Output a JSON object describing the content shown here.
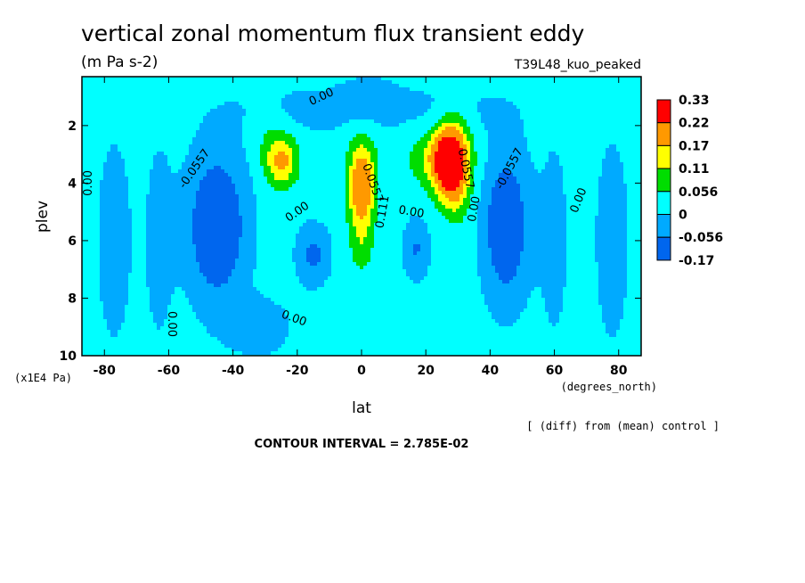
{
  "chart_data": {
    "type": "heatmap",
    "title": "vertical zonal momentum flux transient eddy",
    "units": "(m Pa s-2)",
    "run_label": "T39L48_kuo_peaked",
    "xlabel": "lat",
    "x_units": "(degrees_north)",
    "ylabel": "plev",
    "y_units": "(x1E4 Pa)",
    "xlim": [
      -87,
      87
    ],
    "ylim": [
      10,
      0.3
    ],
    "x_ticks": [
      -80,
      -60,
      -40,
      -20,
      0,
      20,
      40,
      60,
      80
    ],
    "y_ticks": [
      2,
      4,
      6,
      8,
      10
    ],
    "contour_interval_label": "CONTOUR INTERVAL = 2.785E-02",
    "diff_note": "[ (diff) from (mean) control ]",
    "background_level": 0.02,
    "legend": {
      "position": "right",
      "levels": [
        "0.33",
        "0.22",
        "0.17",
        "0.11",
        "0.056",
        "0",
        "-0.056",
        "-0.17"
      ],
      "colors": [
        "#ff0000",
        "#ff9900",
        "#ffff00",
        "#00dd00",
        "#00ffff",
        "#00aaff",
        "#0066ee",
        "#ff0000"
      ]
    },
    "fill_colors": [
      "#0066ee",
      "#00aaff",
      "#00ffff",
      "#00dd00",
      "#ffff00",
      "#ff9900",
      "#ff0000"
    ],
    "features": [
      {
        "lat": 27.5,
        "plev": 3.3,
        "peak": 0.33,
        "wlat": 5.0,
        "wplev": 1.2
      },
      {
        "lat": 24.0,
        "plev": 3.1,
        "peak": 0.1,
        "wlat": 9.0,
        "wplev": 1.0
      },
      {
        "lat": 30.0,
        "plev": 4.5,
        "peak": 0.06,
        "wlat": 4.0,
        "wplev": 1.0
      },
      {
        "lat": 0.0,
        "plev": 4.3,
        "peak": 0.21,
        "wlat": 4.0,
        "wplev": 1.3
      },
      {
        "lat": 0.0,
        "plev": 3.0,
        "peak": 0.06,
        "wlat": 4.5,
        "wplev": 1.0
      },
      {
        "lat": 0.0,
        "plev": 6.2,
        "peak": 0.06,
        "wlat": 3.5,
        "wplev": 1.0
      },
      {
        "lat": -25.0,
        "plev": 3.2,
        "peak": 0.17,
        "wlat": 5.0,
        "wplev": 0.9
      },
      {
        "lat": -45.0,
        "plev": 5.5,
        "peak": -0.15,
        "wlat": 9.0,
        "wplev": 2.5
      },
      {
        "lat": 45.0,
        "plev": 5.5,
        "peak": -0.14,
        "wlat": 7.0,
        "wplev": 2.5
      },
      {
        "lat": -15.0,
        "plev": 6.5,
        "peak": -0.09,
        "wlat": 5.0,
        "wplev": 1.0
      },
      {
        "lat": 17.0,
        "plev": 6.3,
        "peak": -0.08,
        "wlat": 4.0,
        "wplev": 1.0
      },
      {
        "lat": -32.0,
        "plev": 9.0,
        "peak": -0.05,
        "wlat": 10.0,
        "wplev": 1.0
      },
      {
        "lat": 2.0,
        "plev": 1.0,
        "peak": -0.05,
        "wlat": 8.0,
        "wplev": 0.6
      },
      {
        "lat": -77.0,
        "plev": 6.0,
        "peak": -0.04,
        "wlat": 6.0,
        "wplev": 4.0
      },
      {
        "lat": 78.0,
        "plev": 6.0,
        "peak": -0.04,
        "wlat": 6.0,
        "wplev": 4.0
      },
      {
        "lat": -63.0,
        "plev": 6.0,
        "peak": -0.035,
        "wlat": 5.0,
        "wplev": 4.0
      },
      {
        "lat": 60.0,
        "plev": 6.0,
        "peak": -0.035,
        "wlat": 5.0,
        "wplev": 4.0
      },
      {
        "lat": -20.0,
        "plev": 1.5,
        "peak": -0.03,
        "wlat": 25.0,
        "wplev": 1.0
      },
      {
        "lat": 25.0,
        "plev": 1.5,
        "peak": -0.03,
        "wlat": 25.0,
        "wplev": 1.0
      },
      {
        "lat": 0.0,
        "plev": 9.0,
        "peak": 0.03,
        "wlat": 10.0,
        "wplev": 1.0
      },
      {
        "lat": -30.0,
        "plev": 2.0,
        "peak": 0.03,
        "wlat": 5.0,
        "wplev": 1.0
      },
      {
        "lat": 30.0,
        "plev": 2.0,
        "peak": 0.03,
        "wlat": 5.0,
        "wplev": 1.0
      }
    ],
    "contour_labels": [
      {
        "text": "0.00",
        "lat": -12.5,
        "plev": 1.0,
        "angle": -25
      },
      {
        "text": "-0.0557",
        "lat": -52.0,
        "plev": 3.5,
        "angle": -55
      },
      {
        "text": "0.00",
        "lat": -20.0,
        "plev": 5.0,
        "angle": -35
      },
      {
        "text": "0.00",
        "lat": -85.0,
        "plev": 4.0,
        "angle": -90
      },
      {
        "text": "0.00",
        "lat": -59.0,
        "plev": 8.9,
        "angle": 90
      },
      {
        "text": "0.00",
        "lat": -21.0,
        "plev": 8.7,
        "angle": 20
      },
      {
        "text": "0.0557",
        "lat": 3.5,
        "plev": 4.0,
        "angle": 70
      },
      {
        "text": "0.111",
        "lat": 6.5,
        "plev": 5.0,
        "angle": -80
      },
      {
        "text": "0.00",
        "lat": 15.5,
        "plev": 5.0,
        "angle": 10
      },
      {
        "text": "0.0557",
        "lat": 32.5,
        "plev": 3.5,
        "angle": 78
      },
      {
        "text": "0.00",
        "lat": 35.0,
        "plev": 4.9,
        "angle": -80
      },
      {
        "text": "-0.0557",
        "lat": 46.0,
        "plev": 3.5,
        "angle": -62
      },
      {
        "text": "0.00",
        "lat": 67.5,
        "plev": 4.6,
        "angle": -68
      }
    ]
  }
}
